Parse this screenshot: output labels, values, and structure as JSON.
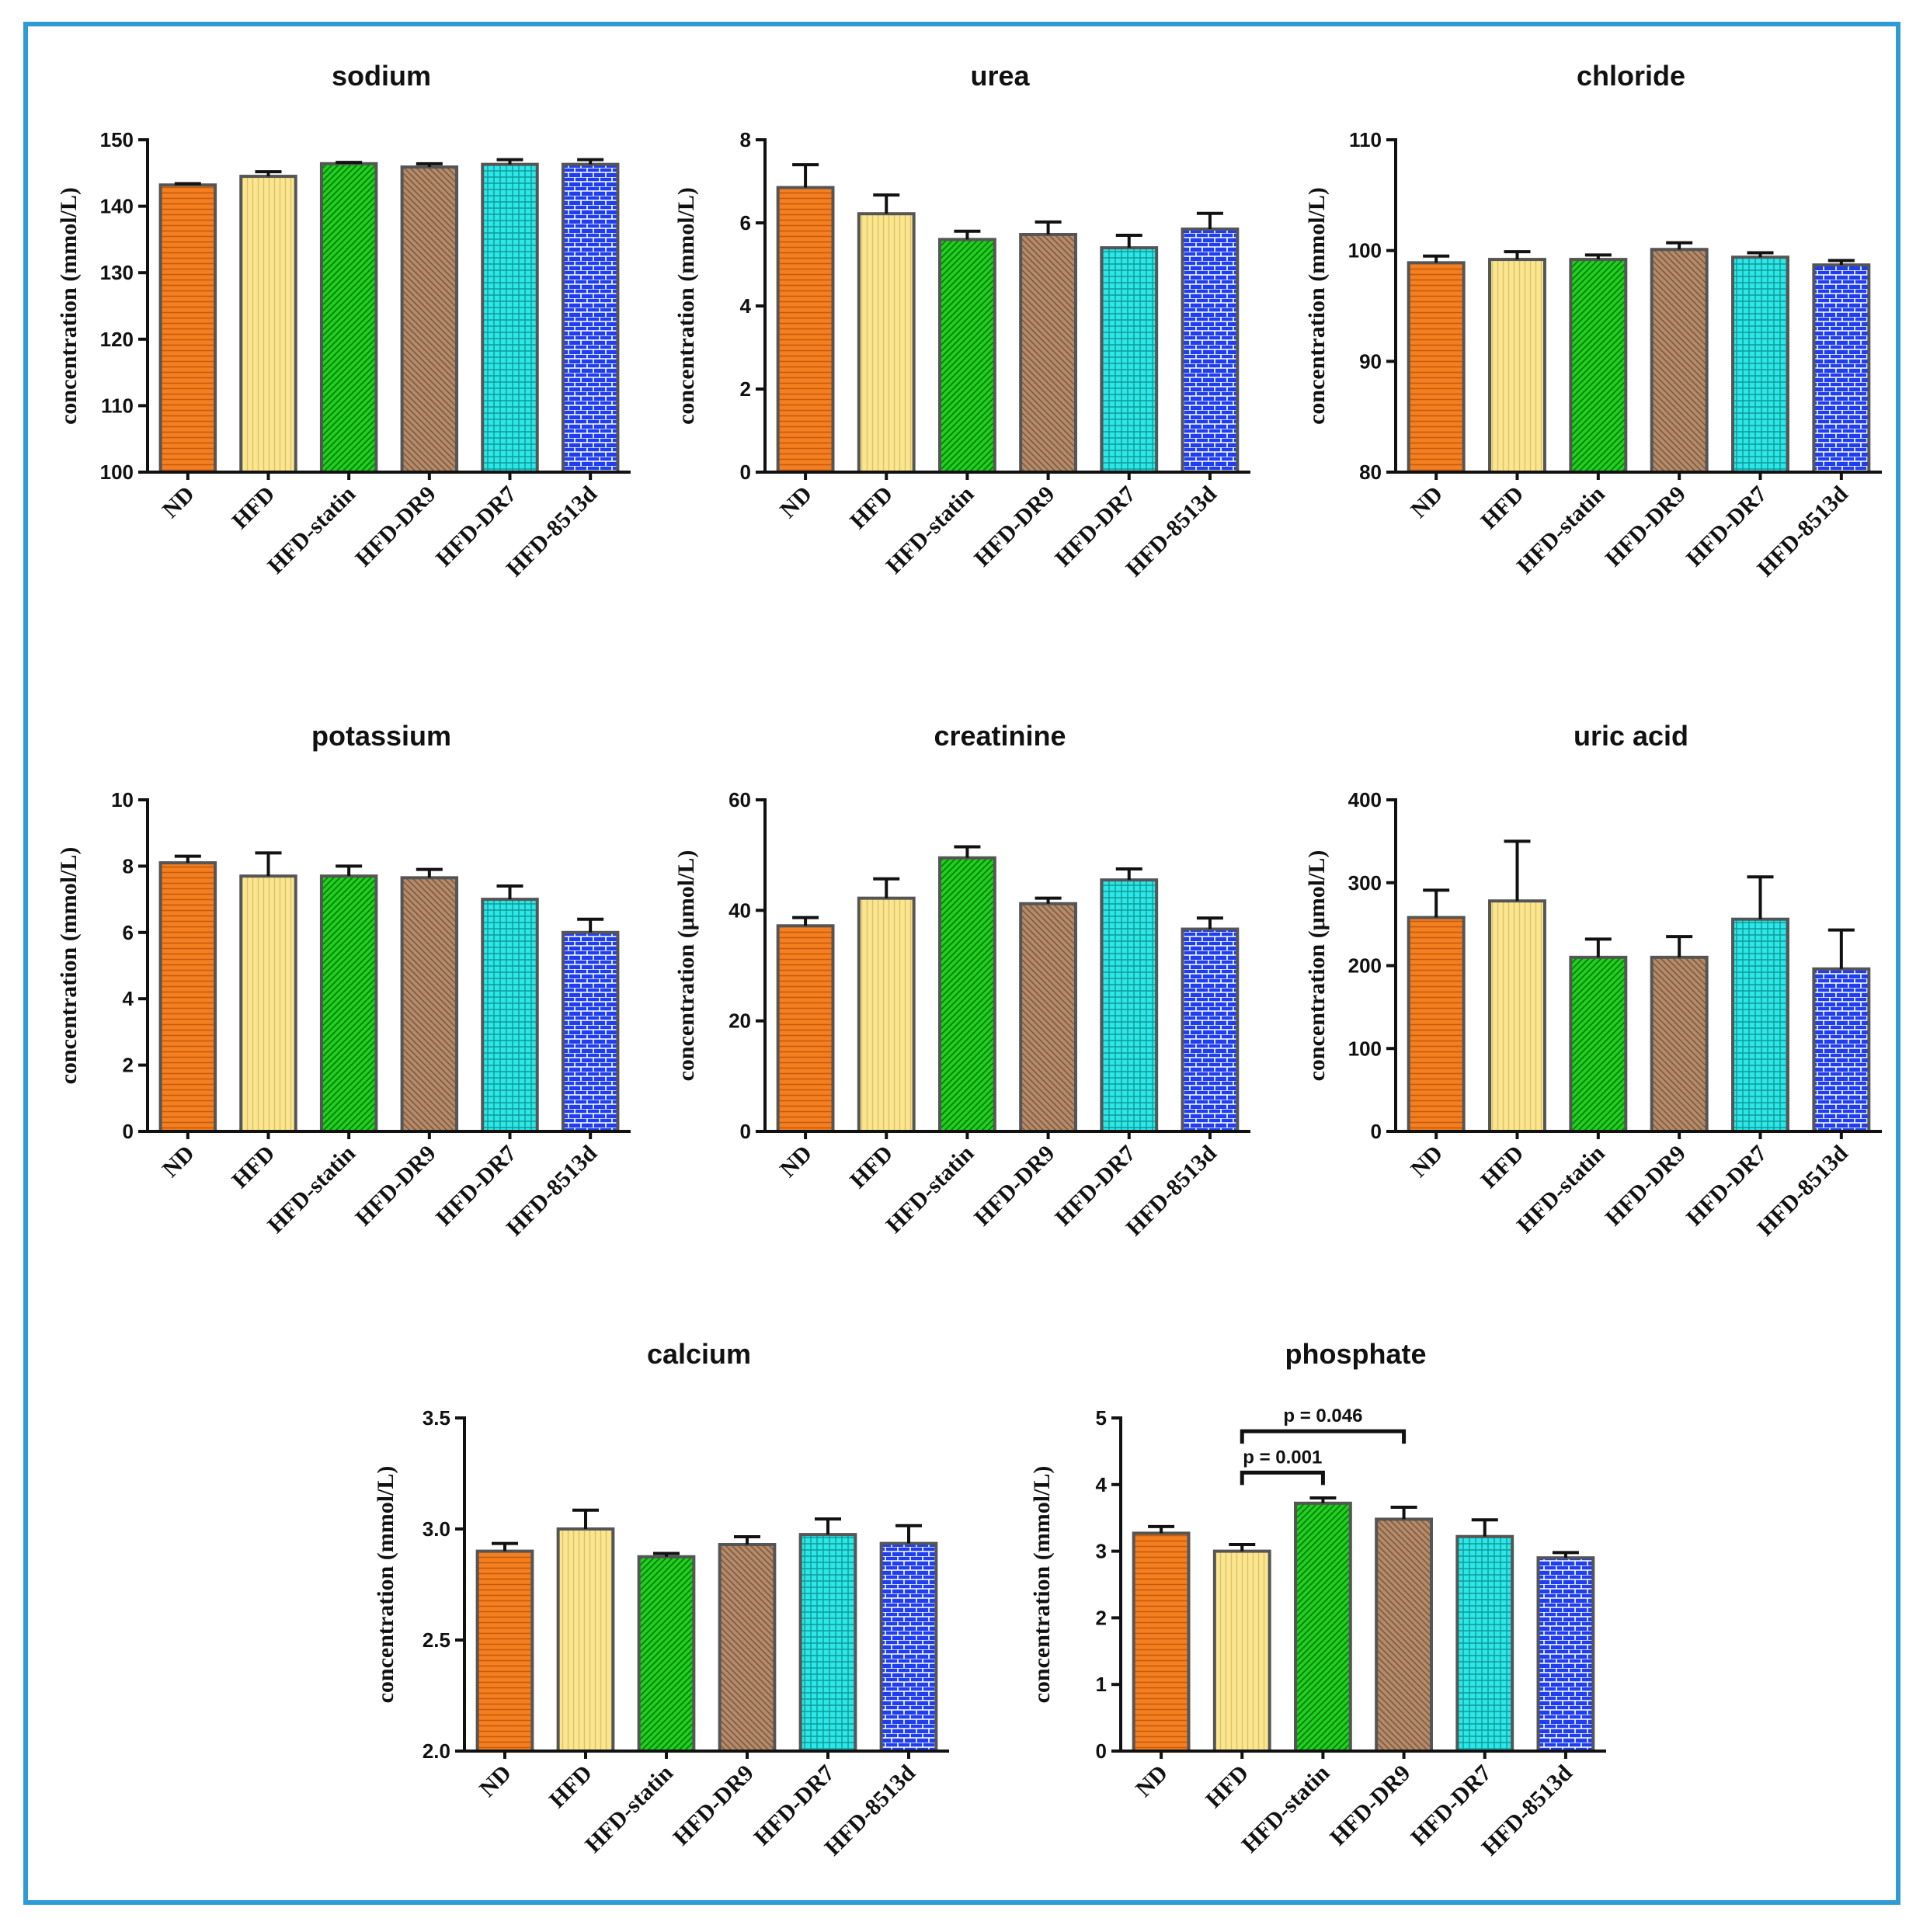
{
  "colors": {
    "frame": "#2f9bd6",
    "ND": "#f47f20",
    "HFD": "#fbe58e",
    "HFD-statin": "#1fd01f",
    "HFD-DR9": "#b58a68",
    "HFD-DR7": "#2de6e6",
    "HFD-8513d": "#1f3ef0",
    "bar_outline": "#555555",
    "axis": "#111111"
  },
  "chart_data": [
    {
      "type": "bar",
      "title": "sodium",
      "ylabel": "concentration (mmol/L)",
      "categories": [
        "ND",
        "HFD",
        "HFD-statin",
        "HFD-DR9",
        "HFD-DR7",
        "HFD-8513d"
      ],
      "values": [
        143.2,
        144.5,
        146.4,
        145.9,
        146.3,
        146.3
      ],
      "errors": [
        0.2,
        0.7,
        0.2,
        0.5,
        0.7,
        0.7
      ],
      "ylim": [
        100,
        150
      ],
      "yticks": [
        "100",
        "110",
        "120",
        "130",
        "140",
        "150"
      ]
    },
    {
      "type": "bar",
      "title": "urea",
      "ylabel": "concentration (mmol/L)",
      "categories": [
        "ND",
        "HFD",
        "HFD-statin",
        "HFD-DR9",
        "HFD-DR7",
        "HFD-8513d"
      ],
      "values": [
        6.85,
        6.22,
        5.6,
        5.72,
        5.4,
        5.85
      ],
      "errors": [
        0.55,
        0.45,
        0.2,
        0.3,
        0.3,
        0.38
      ],
      "ylim": [
        0,
        8
      ],
      "yticks": [
        "0",
        "2",
        "4",
        "6",
        "8"
      ]
    },
    {
      "type": "bar",
      "title": "chloride",
      "ylabel": "concentration (mmol/L)",
      "categories": [
        "ND",
        "HFD",
        "HFD-statin",
        "HFD-DR9",
        "HFD-DR7",
        "HFD-8513d"
      ],
      "values": [
        98.9,
        99.2,
        99.2,
        100.1,
        99.4,
        98.7
      ],
      "errors": [
        0.6,
        0.7,
        0.4,
        0.6,
        0.4,
        0.4
      ],
      "ylim": [
        80,
        110
      ],
      "yticks": [
        "80",
        "90",
        "100",
        "110"
      ]
    },
    {
      "type": "bar",
      "title": "potassium",
      "ylabel": "concentration (mmol/L)",
      "categories": [
        "ND",
        "HFD",
        "HFD-statin",
        "HFD-DR9",
        "HFD-DR7",
        "HFD-8513d"
      ],
      "values": [
        8.1,
        7.7,
        7.7,
        7.65,
        7.0,
        6.0
      ],
      "errors": [
        0.2,
        0.7,
        0.3,
        0.25,
        0.4,
        0.4
      ],
      "ylim": [
        0,
        10
      ],
      "yticks": [
        "0",
        "2",
        "4",
        "6",
        "8",
        "10"
      ]
    },
    {
      "type": "bar",
      "title": "creatinine",
      "ylabel": "concentration (μmol/L)",
      "categories": [
        "ND",
        "HFD",
        "HFD-statin",
        "HFD-DR9",
        "HFD-DR7",
        "HFD-8513d"
      ],
      "values": [
        37.2,
        42.2,
        49.5,
        41.2,
        45.5,
        36.6
      ],
      "errors": [
        1.5,
        3.5,
        2.0,
        1.0,
        2.0,
        2.0
      ],
      "ylim": [
        0,
        60
      ],
      "yticks": [
        "0",
        "20",
        "40",
        "60"
      ]
    },
    {
      "type": "bar",
      "title": "uric acid",
      "ylabel": "concentration (μmol/L)",
      "categories": [
        "ND",
        "HFD",
        "HFD-statin",
        "HFD-DR9",
        "HFD-DR7",
        "HFD-8513d"
      ],
      "values": [
        258,
        278,
        210,
        210,
        256,
        196
      ],
      "errors": [
        33,
        72,
        22,
        25,
        51,
        47
      ],
      "ylim": [
        0,
        400
      ],
      "yticks": [
        "0",
        "100",
        "200",
        "300",
        "400"
      ]
    },
    {
      "type": "bar",
      "title": "calcium",
      "ylabel": "concentration (mmol/L)",
      "categories": [
        "ND",
        "HFD",
        "HFD-statin",
        "HFD-DR9",
        "HFD-DR7",
        "HFD-8513d"
      ],
      "values": [
        2.9,
        3.0,
        2.875,
        2.93,
        2.975,
        2.935
      ],
      "errors": [
        0.035,
        0.085,
        0.015,
        0.035,
        0.07,
        0.08
      ],
      "ylim": [
        2.0,
        3.5
      ],
      "yticks": [
        "2.0",
        "2.5",
        "3.0",
        "3.5"
      ]
    },
    {
      "type": "bar",
      "title": "phosphate",
      "ylabel": "concentration (mmol/L)",
      "categories": [
        "ND",
        "HFD",
        "HFD-statin",
        "HFD-DR9",
        "HFD-DR7",
        "HFD-8513d"
      ],
      "values": [
        3.27,
        3.0,
        3.72,
        3.48,
        3.22,
        2.9
      ],
      "errors": [
        0.1,
        0.1,
        0.08,
        0.18,
        0.25,
        0.08
      ],
      "ylim": [
        0,
        5
      ],
      "yticks": [
        "0",
        "1",
        "2",
        "3",
        "4",
        "5"
      ],
      "annotations": [
        {
          "from": "HFD",
          "to": "HFD-statin",
          "text": "p = 0.001",
          "level": 4.18
        },
        {
          "from": "HFD",
          "to": "HFD-DR9",
          "text": "p = 0.046",
          "level": 4.8
        }
      ]
    }
  ]
}
